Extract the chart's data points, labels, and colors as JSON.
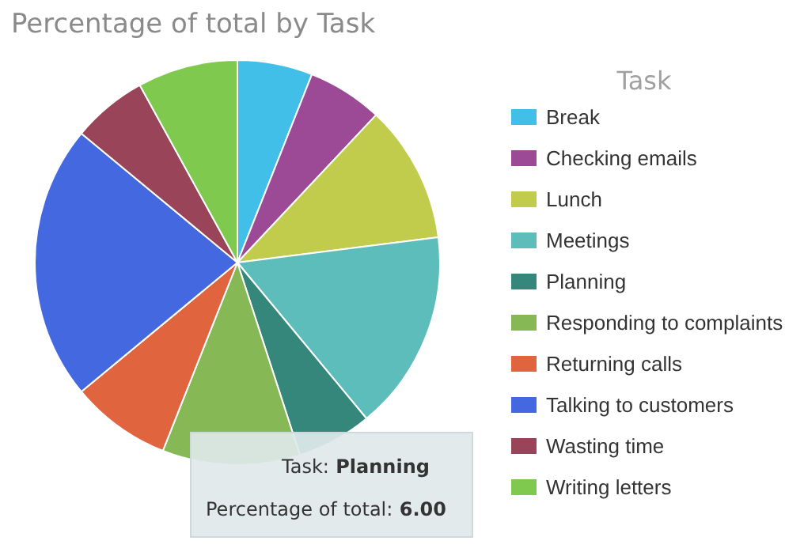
{
  "chart_data": {
    "type": "pie",
    "title": "Percentage of total by Task",
    "legend_title": "Task",
    "legend": "right",
    "categories": [
      "Break",
      "Checking emails",
      "Lunch",
      "Meetings",
      "Planning",
      "Responding to complaints",
      "Returning calls",
      "Talking to customers",
      "Wasting time",
      "Writing letters"
    ],
    "values": [
      6,
      6,
      11,
      16,
      6,
      11,
      8,
      22,
      6,
      8
    ],
    "colors": [
      "#41bfe8",
      "#9d4a96",
      "#c1cc4d",
      "#5dbdba",
      "#34877a",
      "#86b955",
      "#e0643e",
      "#4468e0",
      "#9a4459",
      "#7ec94e"
    ],
    "annotations": [
      "Task: Planning",
      "Percentage of total: 6.00"
    ]
  }
}
